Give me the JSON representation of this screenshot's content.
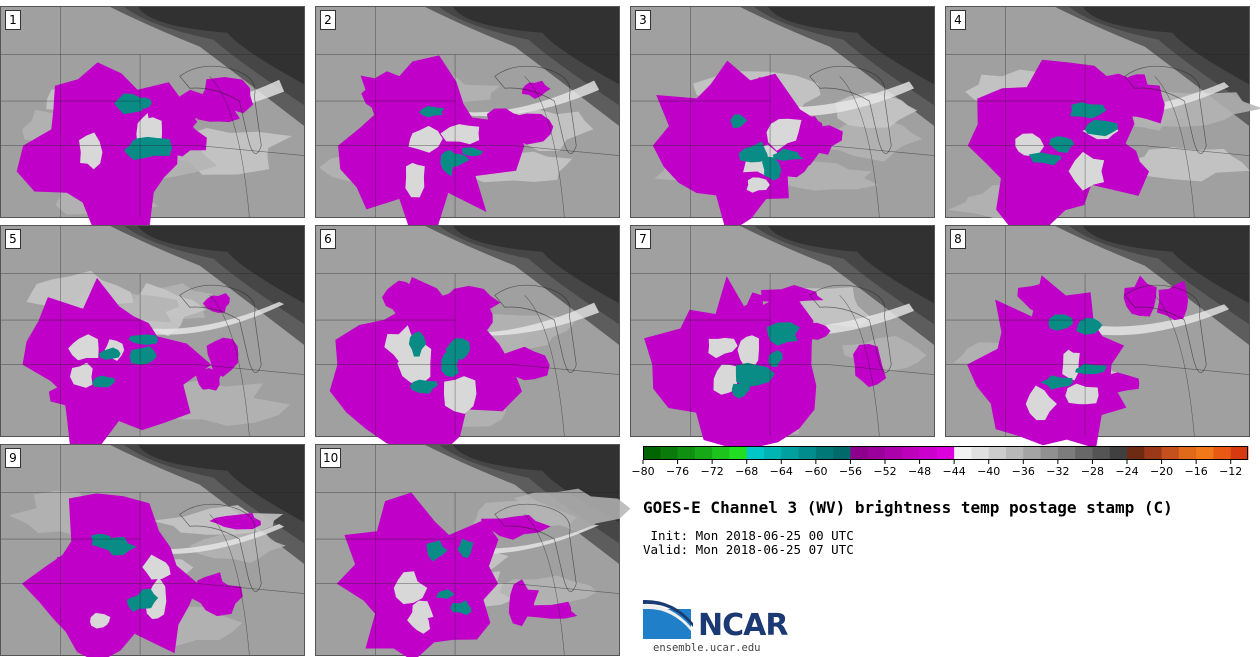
{
  "panels": [
    {
      "label": "1"
    },
    {
      "label": "2"
    },
    {
      "label": "3"
    },
    {
      "label": "4"
    },
    {
      "label": "5"
    },
    {
      "label": "6"
    },
    {
      "label": "7"
    },
    {
      "label": "8"
    },
    {
      "label": "9"
    },
    {
      "label": "10"
    }
  ],
  "colorbar": {
    "tick_labels": [
      "−80",
      "−76",
      "−72",
      "−68",
      "−64",
      "−60",
      "−56",
      "−52",
      "−48",
      "−44",
      "−40",
      "−36",
      "−32",
      "−28",
      "−24",
      "−20",
      "−16",
      "−12"
    ],
    "min": -80,
    "max": -10,
    "step": 2,
    "colors": [
      "#006400",
      "#0a7a0a",
      "#109010",
      "#16a816",
      "#1cc41c",
      "#22de22",
      "#00c8c8",
      "#00b4b4",
      "#00a0a0",
      "#008c8c",
      "#007878",
      "#006a6a",
      "#8c008c",
      "#9c009c",
      "#ac00ac",
      "#bc00bc",
      "#cc00cc",
      "#dc00dc",
      "#f2f2f2",
      "#e0e0e0",
      "#cccccc",
      "#b8b8b8",
      "#a4a4a4",
      "#909090",
      "#7c7c7c",
      "#686868",
      "#545454",
      "#404040",
      "#6e2b14",
      "#9a3818",
      "#c4501e",
      "#e06a1a",
      "#f07818",
      "#e85a14",
      "#d83a10"
    ]
  },
  "title": "GOES-E Channel 3 (WV) brightness temp postage stamp (C)",
  "init": " Init: Mon 2018-06-25 00 UTC",
  "valid": "Valid: Mon 2018-06-25 07 UTC",
  "logo": {
    "text": "NCAR",
    "url": "ensemble.ucar.edu"
  }
}
